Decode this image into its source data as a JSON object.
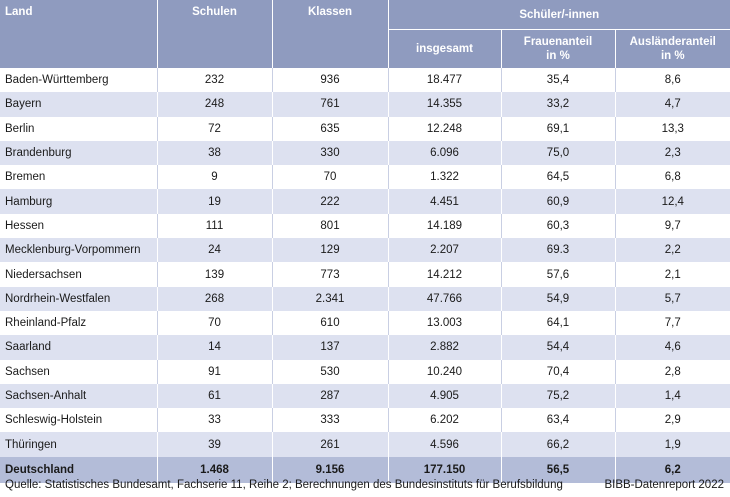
{
  "header": {
    "land": "Land",
    "schulen": "Schulen",
    "klassen": "Klassen",
    "schueler": "Schüler/-innen",
    "insgesamt": "insgesamt",
    "frauenanteil": "Frauenanteil in %",
    "auslaenderanteil": "Ausländeranteil in %"
  },
  "rows": [
    {
      "land": "Baden-Württemberg",
      "schulen": "232",
      "klassen": "936",
      "insgesamt": "18.477",
      "frauen": "35,4",
      "auslaender": "8,6"
    },
    {
      "land": "Bayern",
      "schulen": "248",
      "klassen": "761",
      "insgesamt": "14.355",
      "frauen": "33,2",
      "auslaender": "4,7"
    },
    {
      "land": "Berlin",
      "schulen": "72",
      "klassen": "635",
      "insgesamt": "12.248",
      "frauen": "69,1",
      "auslaender": "13,3"
    },
    {
      "land": "Brandenburg",
      "schulen": "38",
      "klassen": "330",
      "insgesamt": "6.096",
      "frauen": "75,0",
      "auslaender": "2,3"
    },
    {
      "land": "Bremen",
      "schulen": "9",
      "klassen": "70",
      "insgesamt": "1.322",
      "frauen": "64,5",
      "auslaender": "6,8"
    },
    {
      "land": "Hamburg",
      "schulen": "19",
      "klassen": "222",
      "insgesamt": "4.451",
      "frauen": "60,9",
      "auslaender": "12,4"
    },
    {
      "land": "Hessen",
      "schulen": "111",
      "klassen": "801",
      "insgesamt": "14.189",
      "frauen": "60,3",
      "auslaender": "9,7"
    },
    {
      "land": "Mecklenburg-Vorpommern",
      "schulen": "24",
      "klassen": "129",
      "insgesamt": "2.207",
      "frauen": "69.3",
      "auslaender": "2,2"
    },
    {
      "land": "Niedersachsen",
      "schulen": "139",
      "klassen": "773",
      "insgesamt": "14.212",
      "frauen": "57,6",
      "auslaender": "2,1"
    },
    {
      "land": "Nordrhein-Westfalen",
      "schulen": "268",
      "klassen": "2.341",
      "insgesamt": "47.766",
      "frauen": "54,9",
      "auslaender": "5,7"
    },
    {
      "land": "Rheinland-Pfalz",
      "schulen": "70",
      "klassen": "610",
      "insgesamt": "13.003",
      "frauen": "64,1",
      "auslaender": "7,7"
    },
    {
      "land": "Saarland",
      "schulen": "14",
      "klassen": "137",
      "insgesamt": "2.882",
      "frauen": "54,4",
      "auslaender": "4,6"
    },
    {
      "land": "Sachsen",
      "schulen": "91",
      "klassen": "530",
      "insgesamt": "10.240",
      "frauen": "70,4",
      "auslaender": "2,8"
    },
    {
      "land": "Sachsen-Anhalt",
      "schulen": "61",
      "klassen": "287",
      "insgesamt": "4.905",
      "frauen": "75,2",
      "auslaender": "1,4"
    },
    {
      "land": "Schleswig-Holstein",
      "schulen": "33",
      "klassen": "333",
      "insgesamt": "6.202",
      "frauen": "63,4",
      "auslaender": "2,9"
    },
    {
      "land": "Thüringen",
      "schulen": "39",
      "klassen": "261",
      "insgesamt": "4.596",
      "frauen": "66,2",
      "auslaender": "1,9"
    }
  ],
  "total": {
    "land": "Deutschland",
    "schulen": "1.468",
    "klassen": "9.156",
    "insgesamt": "177.150",
    "frauen": "56,5",
    "auslaender": "6,2"
  },
  "footer": {
    "source": "Quelle: Statistisches Bundesamt, Fachserie 11, Reihe 2; Berechnungen des Bundesinstituts für Berufsbildung",
    "report": "BIBB-Datenreport 2022"
  }
}
